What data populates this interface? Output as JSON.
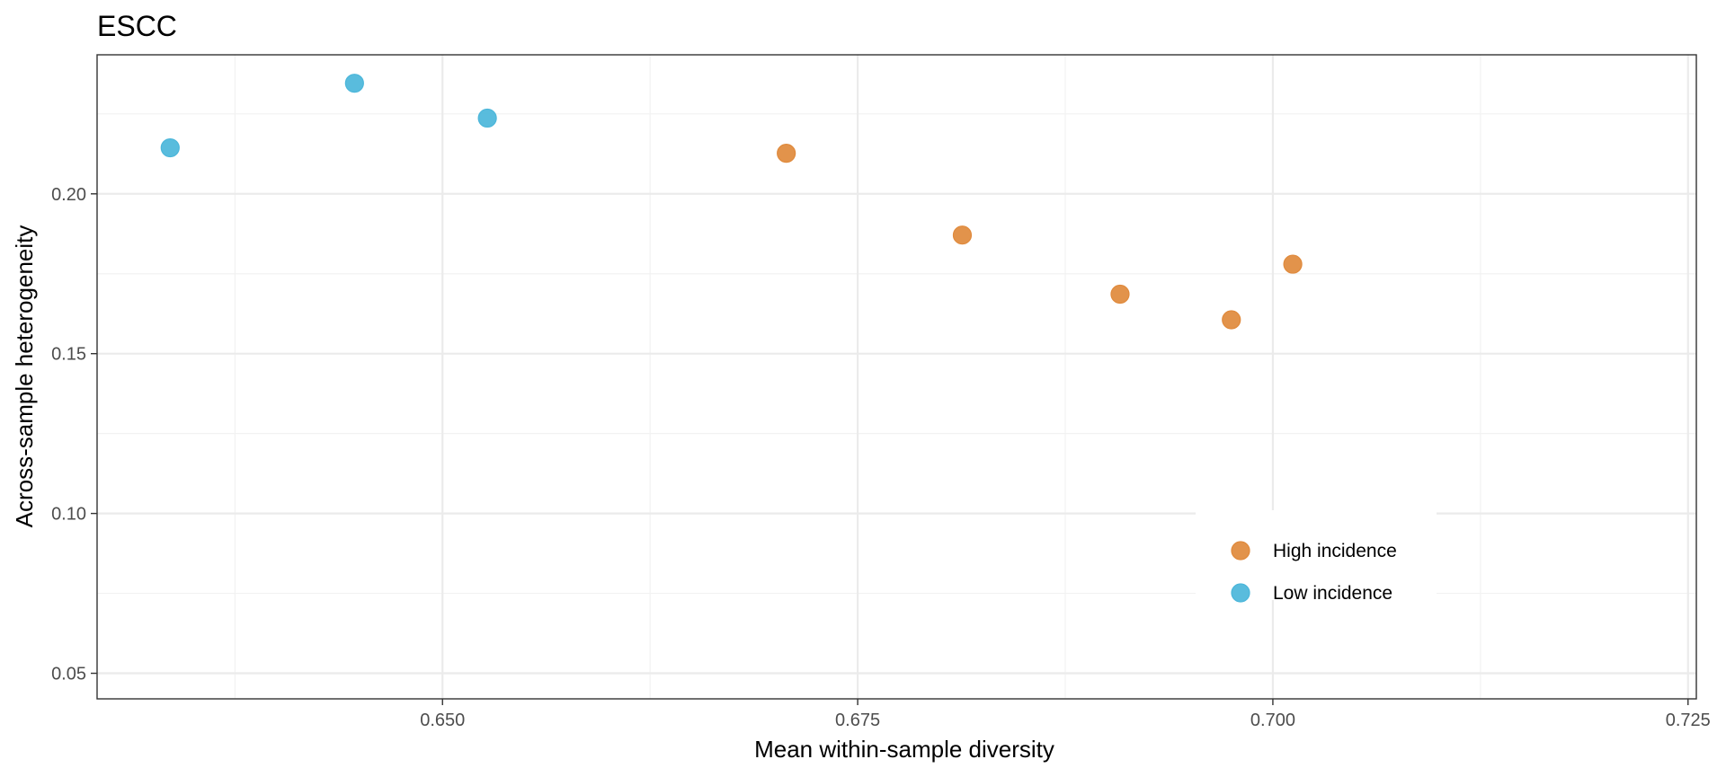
{
  "chart_data": {
    "type": "scatter",
    "title": "ESCC",
    "xlabel": "Mean within-sample diversity",
    "ylabel": "Across-sample heterogeneity",
    "xlim": [
      0.6292,
      0.7255
    ],
    "ylim": [
      0.042,
      0.2435
    ],
    "x_ticks": [
      0.65,
      0.675,
      0.7,
      0.725
    ],
    "x_tick_labels": [
      "0.650",
      "0.675",
      "0.700",
      "0.725"
    ],
    "y_ticks": [
      0.05,
      0.1,
      0.15,
      0.2
    ],
    "y_tick_labels": [
      "0.05",
      "0.10",
      "0.15",
      "0.20"
    ],
    "grid": true,
    "legend_position": "bottom-right inside",
    "series": [
      {
        "name": "High incidence",
        "color": "#E08A3C",
        "points": [
          {
            "x": 0.6707,
            "y": 0.2127
          },
          {
            "x": 0.6813,
            "y": 0.1871
          },
          {
            "x": 0.6908,
            "y": 0.1686
          },
          {
            "x": 0.6975,
            "y": 0.1606
          },
          {
            "x": 0.7012,
            "y": 0.178
          }
        ]
      },
      {
        "name": "Low incidence",
        "color": "#4BB6DA",
        "points": [
          {
            "x": 0.6336,
            "y": 0.2144
          },
          {
            "x": 0.6447,
            "y": 0.2346
          },
          {
            "x": 0.6527,
            "y": 0.2237
          }
        ]
      }
    ]
  }
}
